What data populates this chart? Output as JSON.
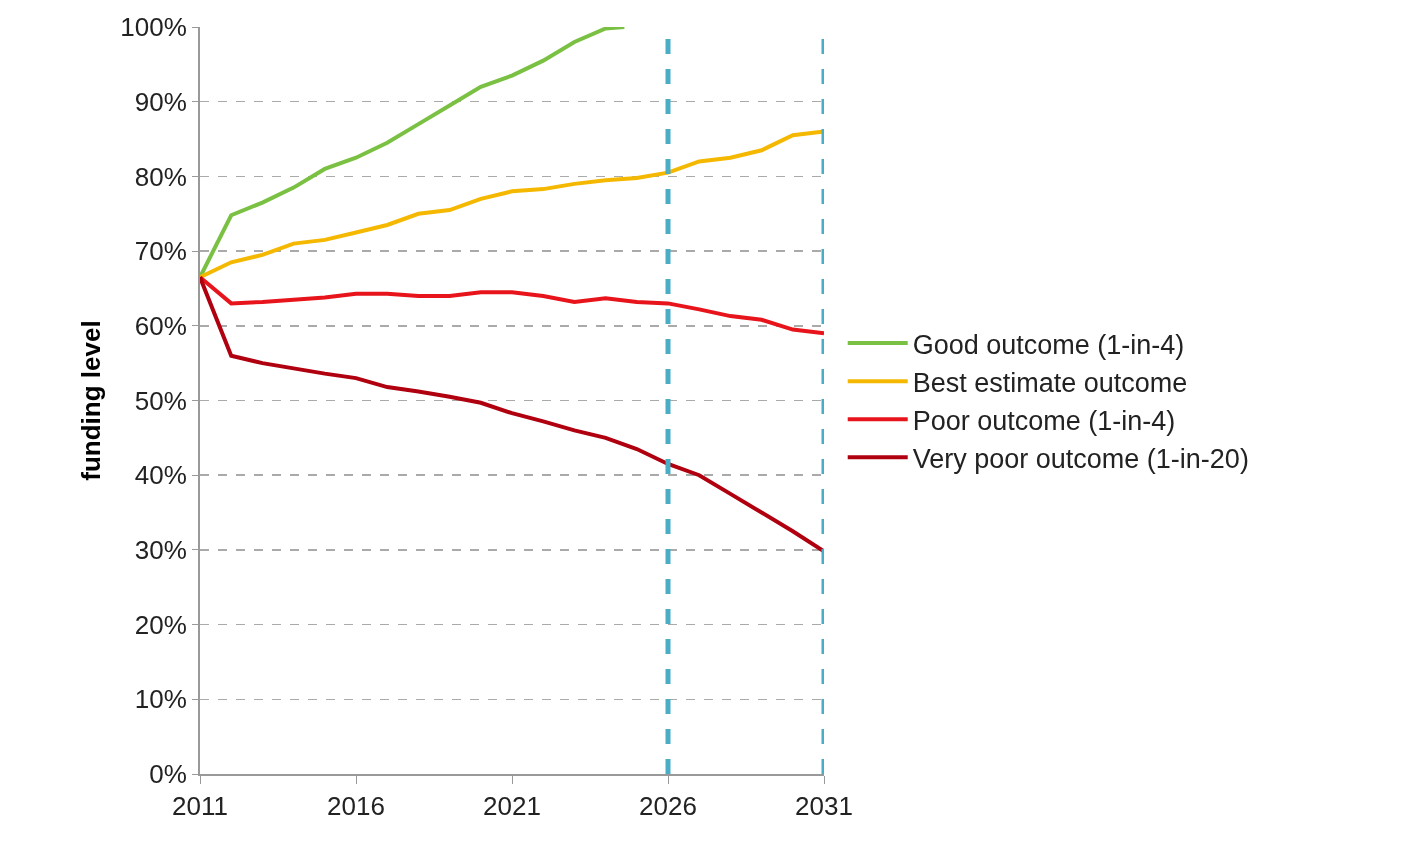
{
  "chart_data": {
    "type": "line",
    "ylabel": "funding level",
    "x": [
      2011,
      2012,
      2013,
      2014,
      2015,
      2016,
      2017,
      2018,
      2019,
      2020,
      2021,
      2022,
      2023,
      2024,
      2025,
      2026,
      2027,
      2028,
      2029,
      2030,
      2031
    ],
    "series": [
      {
        "name": "Good outcome (1-in-4)",
        "color": "#7ac143",
        "x": [
          2011,
          2012,
          2013,
          2014,
          2015,
          2016,
          2017,
          2018,
          2019,
          2020,
          2021,
          2022,
          2023,
          2024,
          2024.6
        ],
        "values": [
          66.5,
          74.8,
          76.5,
          78.5,
          81,
          82.5,
          84.5,
          87,
          89.5,
          92,
          93.5,
          95.5,
          98,
          99.8,
          100
        ]
      },
      {
        "name": "Best estimate outcome",
        "color": "#f5b800",
        "values": [
          66.5,
          68.5,
          69.5,
          71,
          71.5,
          72.5,
          73.5,
          75,
          75.5,
          77,
          78,
          78.3,
          79,
          79.5,
          79.8,
          80.5,
          82,
          82.5,
          83.5,
          85.5,
          86
        ]
      },
      {
        "name": "Poor outcome (1-in-4)",
        "color": "#e8141c",
        "values": [
          66.5,
          63,
          63.2,
          63.5,
          63.8,
          64.3,
          64.3,
          64,
          64,
          64.5,
          64.5,
          64,
          63.2,
          63.7,
          63.2,
          63,
          62.2,
          61.3,
          60.8,
          59.5,
          59
        ]
      },
      {
        "name": "Very poor outcome (1-in-20)",
        "color": "#b0000f",
        "values": [
          66.5,
          56,
          55,
          54.3,
          53.6,
          53,
          51.8,
          51.2,
          50.5,
          49.7,
          48.3,
          47.2,
          46,
          45,
          43.5,
          41.5,
          40,
          37.5,
          35,
          32.5,
          29.8
        ]
      }
    ],
    "xlim": [
      2011,
      2031
    ],
    "xticks": [
      2011,
      2016,
      2021,
      2026,
      2031
    ],
    "ylim": [
      0,
      100
    ],
    "yticks": [
      {
        "value": 0,
        "label": "0%"
      },
      {
        "value": 10,
        "label": "10%"
      },
      {
        "value": 20,
        "label": "20%"
      },
      {
        "value": 30,
        "label": "30%"
      },
      {
        "value": 40,
        "label": "40%"
      },
      {
        "value": 50,
        "label": "50%"
      },
      {
        "value": 60,
        "label": "60%"
      },
      {
        "value": 70,
        "label": "70%"
      },
      {
        "value": 80,
        "label": "80%"
      },
      {
        "value": 90,
        "label": "90%"
      },
      {
        "value": 100,
        "label": "100%"
      }
    ],
    "ref_lines": [
      {
        "axis": "x",
        "value": 2026,
        "color": "#4bacc6",
        "line_style": "dashed"
      },
      {
        "axis": "x",
        "value": 2031,
        "color": "#4bacc6",
        "line_style": "dashed"
      }
    ],
    "grid": "y",
    "legend": "right",
    "marker": "none",
    "line_style": "solid"
  }
}
